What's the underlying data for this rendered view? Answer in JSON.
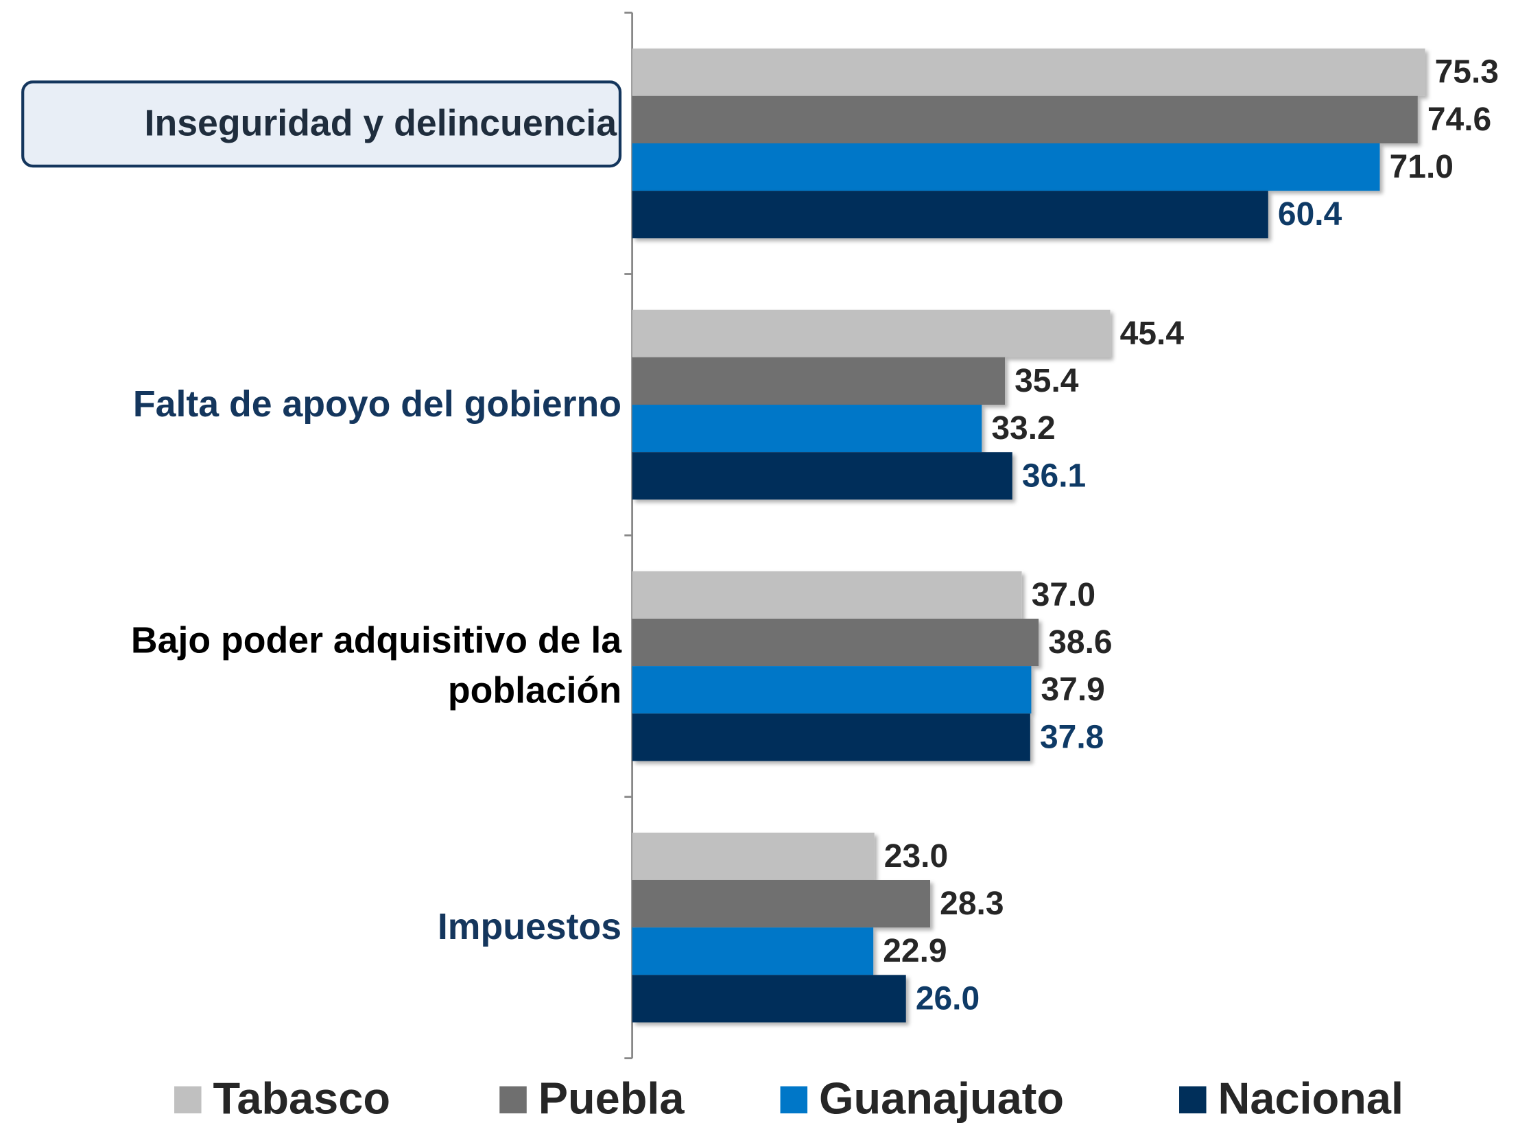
{
  "chart_data": {
    "type": "barh",
    "categories": [
      "Inseguridad y delincuencia",
      "Falta de apoyo del gobierno",
      "Bajo poder adquisitivo de la población",
      "Impuestos"
    ],
    "series": [
      {
        "name": "Tabasco",
        "color": "#c0c0c0",
        "values": [
          75.3,
          45.4,
          37.0,
          23.0
        ],
        "value_labels": [
          "75.3",
          "45.4",
          "37.0",
          "23.0"
        ]
      },
      {
        "name": "Puebla",
        "color": "#6f6f6f",
        "values": [
          74.6,
          35.4,
          38.6,
          28.3
        ],
        "value_labels": [
          "74.6",
          "35.4",
          "38.6",
          "28.3"
        ]
      },
      {
        "name": "Guanajuato",
        "color": "#0077c8",
        "values": [
          71.0,
          33.2,
          37.9,
          22.9
        ],
        "value_labels": [
          "71.0",
          "33.2",
          "37.9",
          "22.9"
        ]
      },
      {
        "name": "Nacional",
        "color": "#002f5a",
        "values": [
          60.4,
          36.1,
          37.8,
          26.0
        ],
        "value_labels": [
          "60.4",
          "36.1",
          "37.8",
          "26.0"
        ]
      }
    ],
    "legend": "bottom"
  }
}
